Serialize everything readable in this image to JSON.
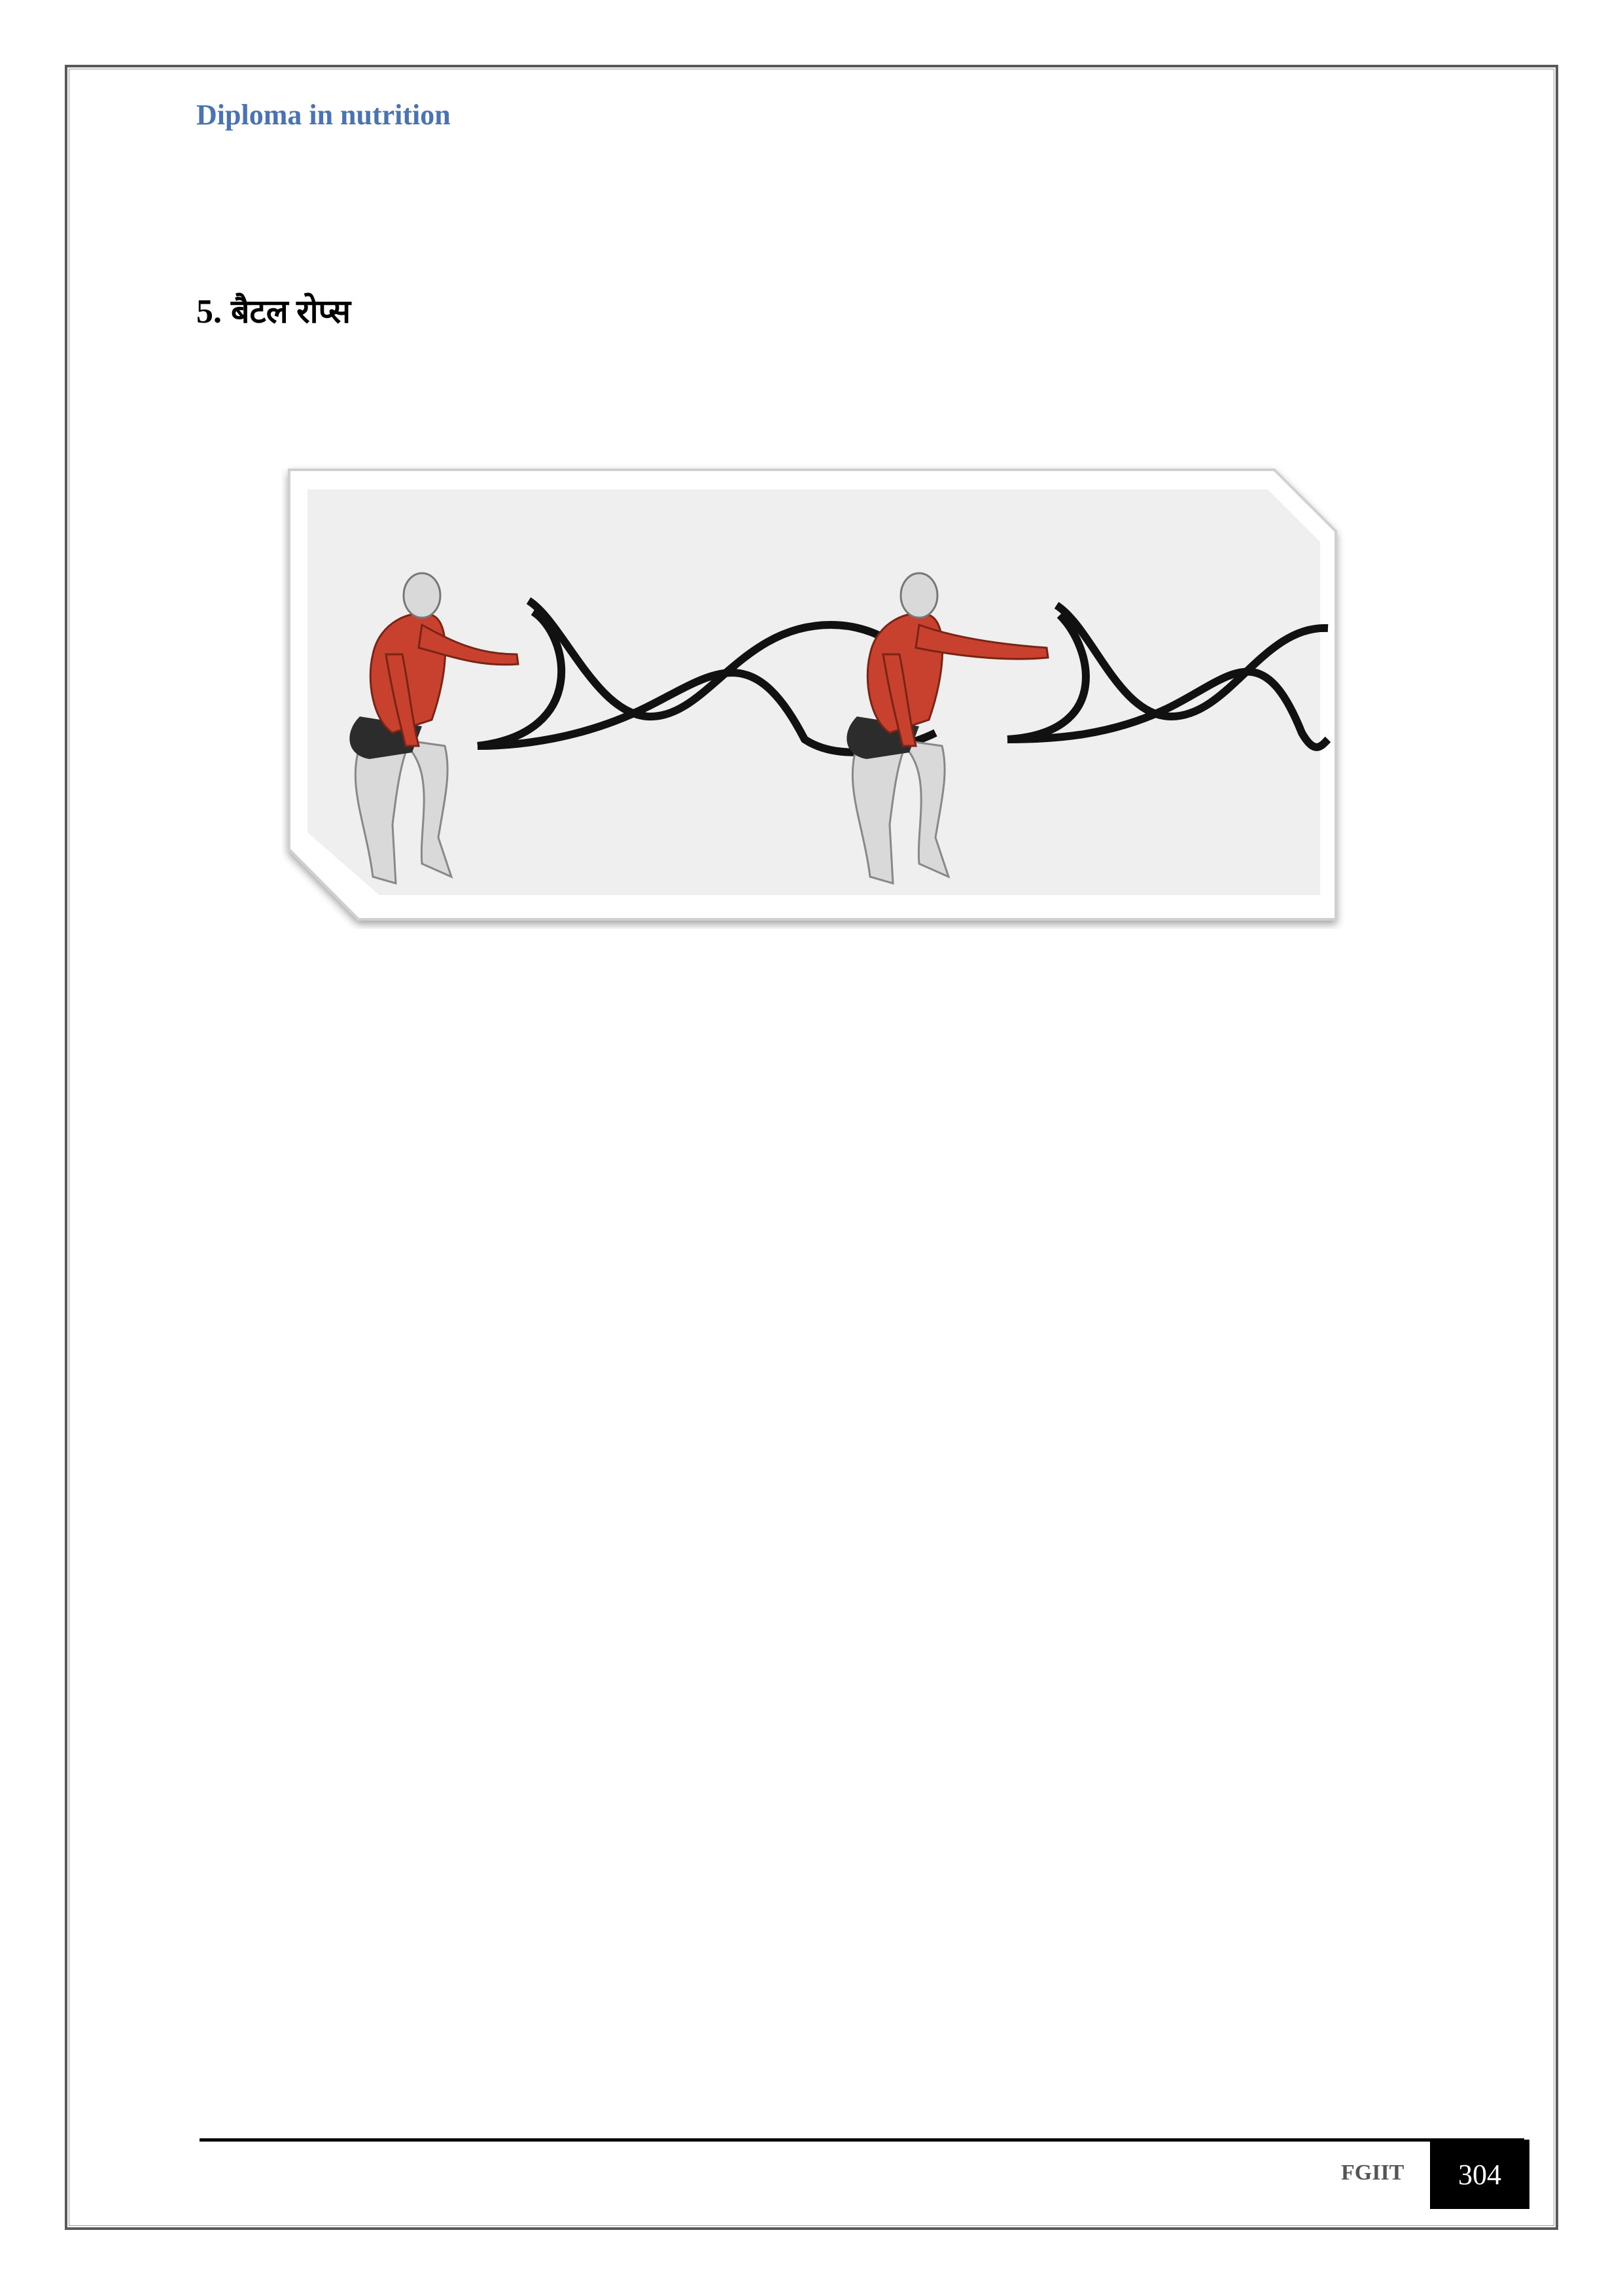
{
  "header": {
    "title": "Diploma in nutrition"
  },
  "section": {
    "number": "5.",
    "title": "बैटल रोप्स"
  },
  "figure": {
    "icon": "battle-ropes-exercise-illustration"
  },
  "footer": {
    "org": "FGIIT",
    "page_number": "304"
  },
  "colors": {
    "header_blue": "#4a73b0",
    "muscle_red": "#c8412e",
    "figure_bg": "#efefef"
  }
}
